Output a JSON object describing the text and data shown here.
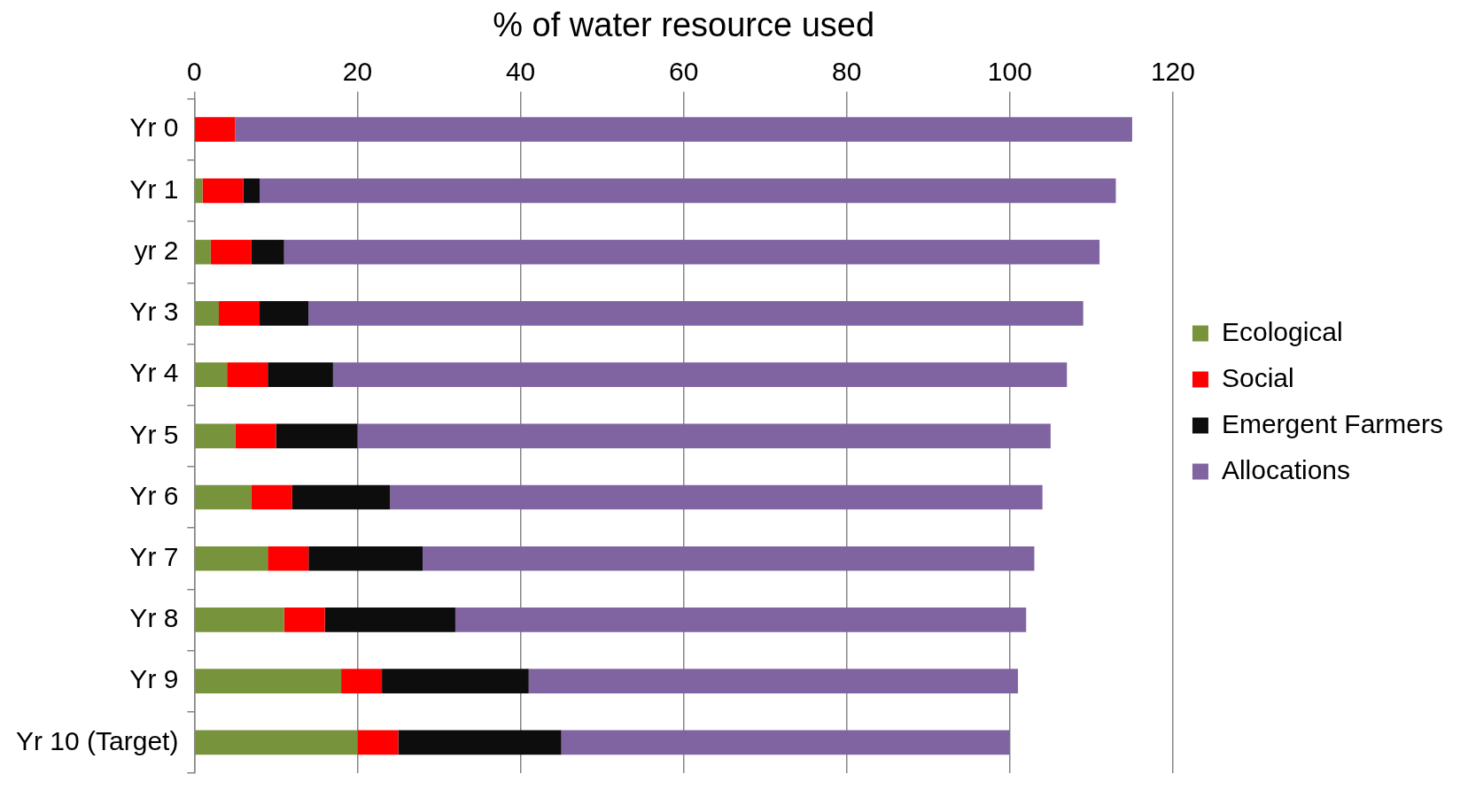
{
  "chart_data": {
    "type": "bar",
    "orientation": "horizontal",
    "stacked": true,
    "xlabel": "% of water resource used",
    "categories": [
      "Yr 0",
      "Yr 1",
      "yr 2",
      "Yr 3",
      "Yr 4",
      "Yr 5",
      "Yr 6",
      "Yr 7",
      "Yr 8",
      "Yr 9",
      "Yr 10 (Target)"
    ],
    "series": [
      {
        "name": "Ecological",
        "color": "#77933c",
        "values": [
          0,
          1,
          2,
          3,
          4,
          5,
          7,
          9,
          11,
          18,
          20
        ]
      },
      {
        "name": "Social",
        "color": "#ff0000",
        "values": [
          5,
          5,
          5,
          5,
          5,
          5,
          5,
          5,
          5,
          5,
          5
        ]
      },
      {
        "name": "Emergent Farmers",
        "color": "#0d0d0d",
        "values": [
          0,
          2,
          4,
          6,
          8,
          10,
          12,
          14,
          16,
          18,
          20
        ]
      },
      {
        "name": "Allocations",
        "color": "#8064a2",
        "values": [
          110,
          105,
          100,
          95,
          90,
          85,
          80,
          75,
          70,
          60,
          55
        ]
      }
    ],
    "xlim": [
      0,
      120
    ],
    "xticks": [
      0,
      20,
      40,
      60,
      80,
      100,
      120
    ],
    "grid": "x",
    "legend": "right"
  }
}
